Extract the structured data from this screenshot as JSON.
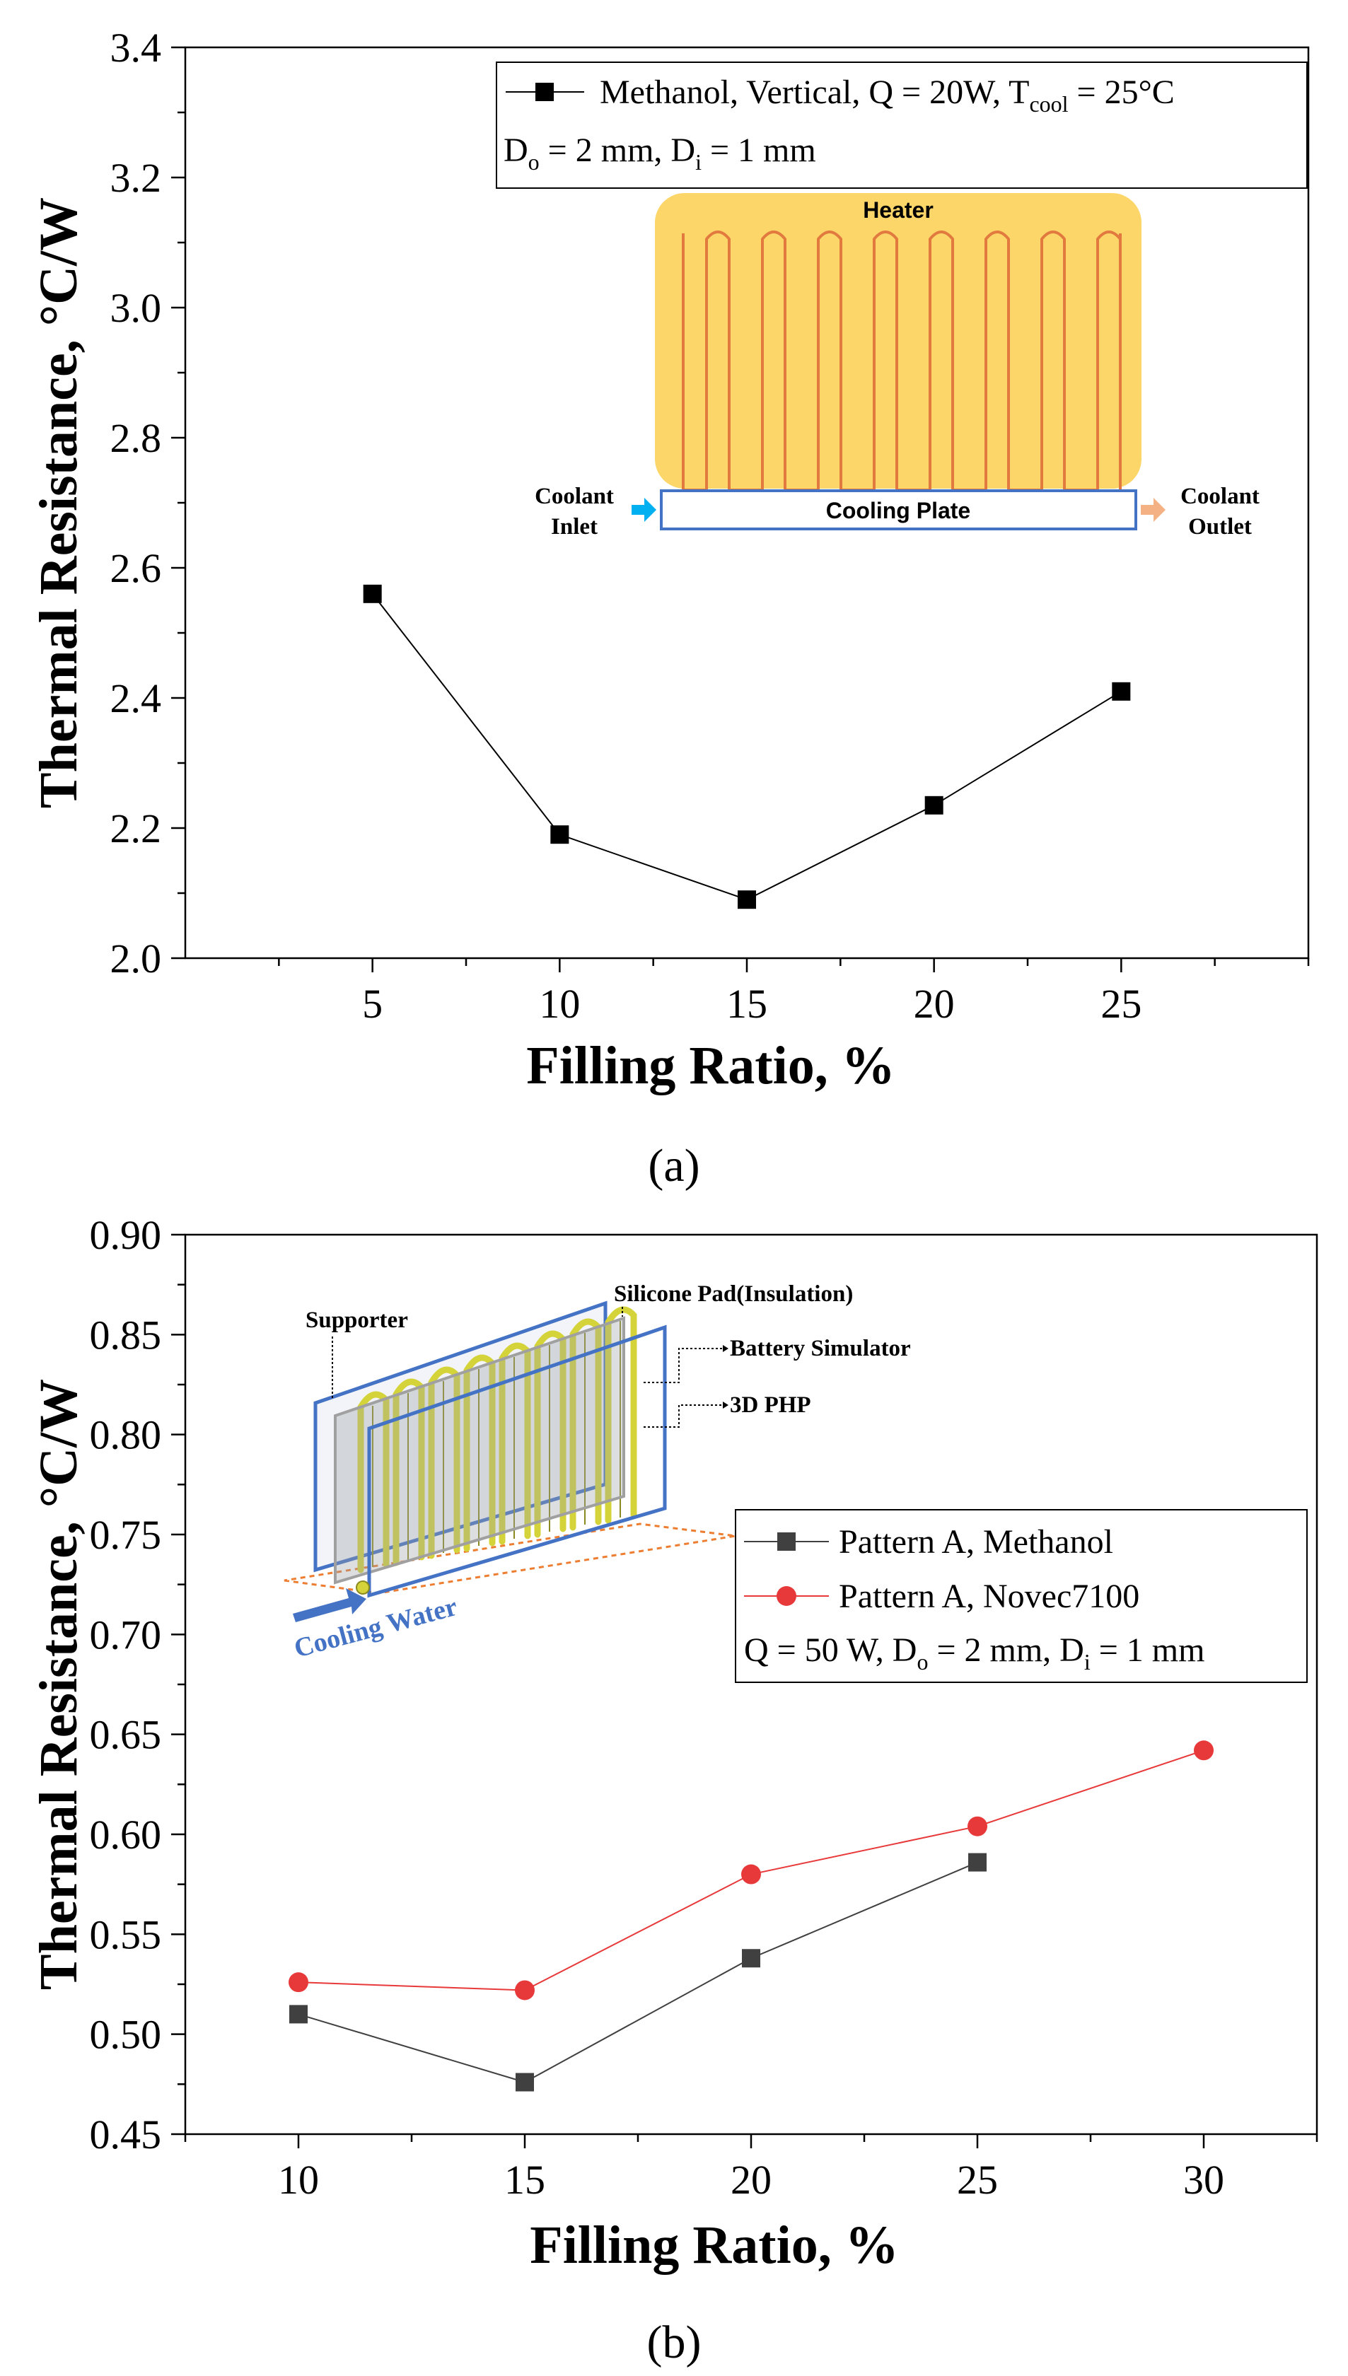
{
  "chart_data": [
    {
      "type": "line",
      "panel_label": "(a)",
      "xlabel": "Filling Ratio, %",
      "ylabel": "Thermal Resistance, °C/W",
      "xlim": [
        0,
        30
      ],
      "ylim": [
        2.0,
        3.4
      ],
      "xticks": [
        5,
        10,
        15,
        20,
        25
      ],
      "yticks": [
        2.0,
        2.2,
        2.4,
        2.6,
        2.8,
        3.0,
        3.2,
        3.4
      ],
      "ytick_labels": [
        "2.0",
        "2.2",
        "2.4",
        "2.6",
        "2.8",
        "3.0",
        "3.2",
        "3.4"
      ],
      "legend_position": "top-right",
      "series": [
        {
          "name": "Methanol, Vertical, Q = 20W, T",
          "name_sub": "cool",
          "name_tail": " = 25°C",
          "marker": "square",
          "color": "#000000",
          "x": [
            5,
            10,
            15,
            20,
            25
          ],
          "values": [
            2.56,
            2.19,
            2.09,
            2.235,
            2.41
          ]
        }
      ],
      "legend_note": {
        "a": "D",
        "a_sub": "o",
        "b": " = 2 mm, D",
        "b_sub": "i",
        "c": " = 1 mm"
      },
      "inset": {
        "heater_label": "Heater",
        "cooling_plate_label": "Cooling Plate",
        "inlet_line1": "Coolant",
        "inlet_line2": "Inlet",
        "outlet_line1": "Coolant",
        "outlet_line2": "Outlet",
        "heater_color": "#FCD668",
        "pipe_color": "#E27A40",
        "plate_color": "#4472C4"
      }
    },
    {
      "type": "line",
      "panel_label": "(b)",
      "xlabel": "Filling Ratio, %",
      "ylabel": "Thermal Resistance, °C/W",
      "xlim": [
        7.5,
        32.5
      ],
      "ylim": [
        0.45,
        0.9
      ],
      "xticks": [
        10,
        15,
        20,
        25,
        30
      ],
      "yticks": [
        0.45,
        0.5,
        0.55,
        0.6,
        0.65,
        0.7,
        0.75,
        0.8,
        0.85,
        0.9
      ],
      "ytick_labels": [
        "0.45",
        "0.50",
        "0.55",
        "0.60",
        "0.65",
        "0.70",
        "0.75",
        "0.80",
        "0.85",
        "0.90"
      ],
      "legend_position": "middle-right",
      "series": [
        {
          "name": "Pattern A, Methanol",
          "marker": "square",
          "color": "#404040",
          "x": [
            10,
            15,
            20,
            25
          ],
          "values": [
            0.51,
            0.476,
            0.538,
            0.586
          ]
        },
        {
          "name": "Pattern A, Novec7100",
          "marker": "circle",
          "color": "#E8393A",
          "x": [
            10,
            15,
            20,
            25,
            30
          ],
          "values": [
            0.526,
            0.522,
            0.58,
            0.604,
            0.642
          ]
        }
      ],
      "legend_note": {
        "a": "Q = 50 W, D",
        "a_sub": "o",
        "b": " = 2 mm, D",
        "b_sub": "i",
        "c": " = 1 mm"
      },
      "inset": {
        "silicone_label": "Silicone  Pad(Insulation)",
        "supporter_label": "Supporter",
        "battery_label": "Battery Simulator",
        "php_label": "3D PHP",
        "cooling_water_label": "Cooling Water",
        "frame_color": "#4472C4",
        "pipe_color": "#D4D43A",
        "base_color": "#ED7D31"
      }
    }
  ]
}
